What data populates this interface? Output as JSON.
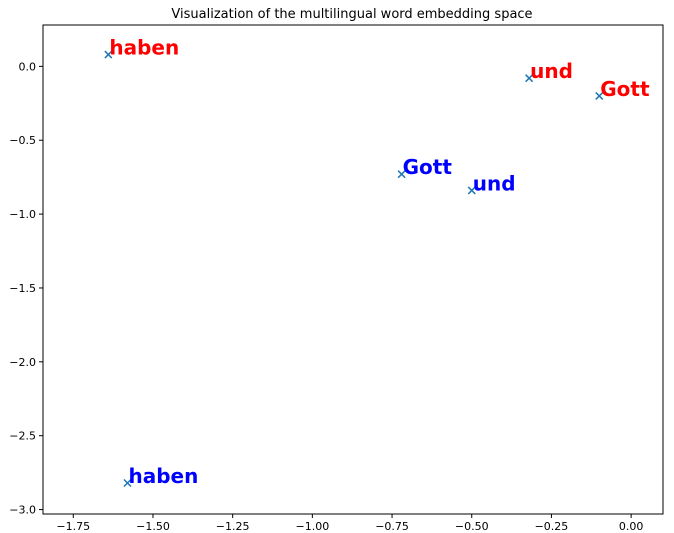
{
  "chart_data": {
    "type": "scatter",
    "title": "Visualization of the multilingual word embedding space",
    "xlabel": "",
    "ylabel": "",
    "xlim": [
      -1.845,
      0.1
    ],
    "ylim": [
      -3.03,
      0.28
    ],
    "xticks": [
      -1.75,
      -1.5,
      -1.25,
      -1.0,
      -0.75,
      -0.5,
      -0.25,
      0.0
    ],
    "xtick_labels": [
      "−1.75",
      "−1.50",
      "−1.25",
      "−1.00",
      "−0.75",
      "−0.50",
      "−0.25",
      "0.00"
    ],
    "yticks": [
      0.0,
      -0.5,
      -1.0,
      -1.5,
      -2.0,
      -2.5,
      -3.0
    ],
    "ytick_labels": [
      "0.0",
      "−0.5",
      "−1.0",
      "−1.5",
      "−2.0",
      "−2.5",
      "−3.0"
    ],
    "grid": false,
    "marker": "x",
    "marker_color": "#1f77b4",
    "points": [
      {
        "word": "haben",
        "x": -1.64,
        "y": 0.08,
        "color": "#ff0000"
      },
      {
        "word": "und",
        "x": -0.32,
        "y": -0.08,
        "color": "#ff0000"
      },
      {
        "word": "Gott",
        "x": -0.1,
        "y": -0.2,
        "color": "#ff0000"
      },
      {
        "word": "Gott",
        "x": -0.72,
        "y": -0.73,
        "color": "#0000ff"
      },
      {
        "word": "und",
        "x": -0.5,
        "y": -0.84,
        "color": "#0000ff"
      },
      {
        "word": "haben",
        "x": -1.58,
        "y": -2.82,
        "color": "#0000ff"
      }
    ]
  }
}
